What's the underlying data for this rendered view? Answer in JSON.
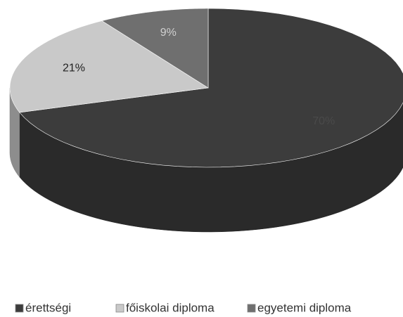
{
  "chart_data": {
    "type": "pie",
    "categories": [
      "érettségi",
      "főiskolai diploma",
      "egyetemi diploma"
    ],
    "values": [
      70,
      21,
      9
    ],
    "value_labels": [
      "70%",
      "21%",
      "9%"
    ],
    "colors": [
      "#3c3c3c",
      "#c9c9c9",
      "#6f6f6f"
    ],
    "legend": "bottom"
  }
}
